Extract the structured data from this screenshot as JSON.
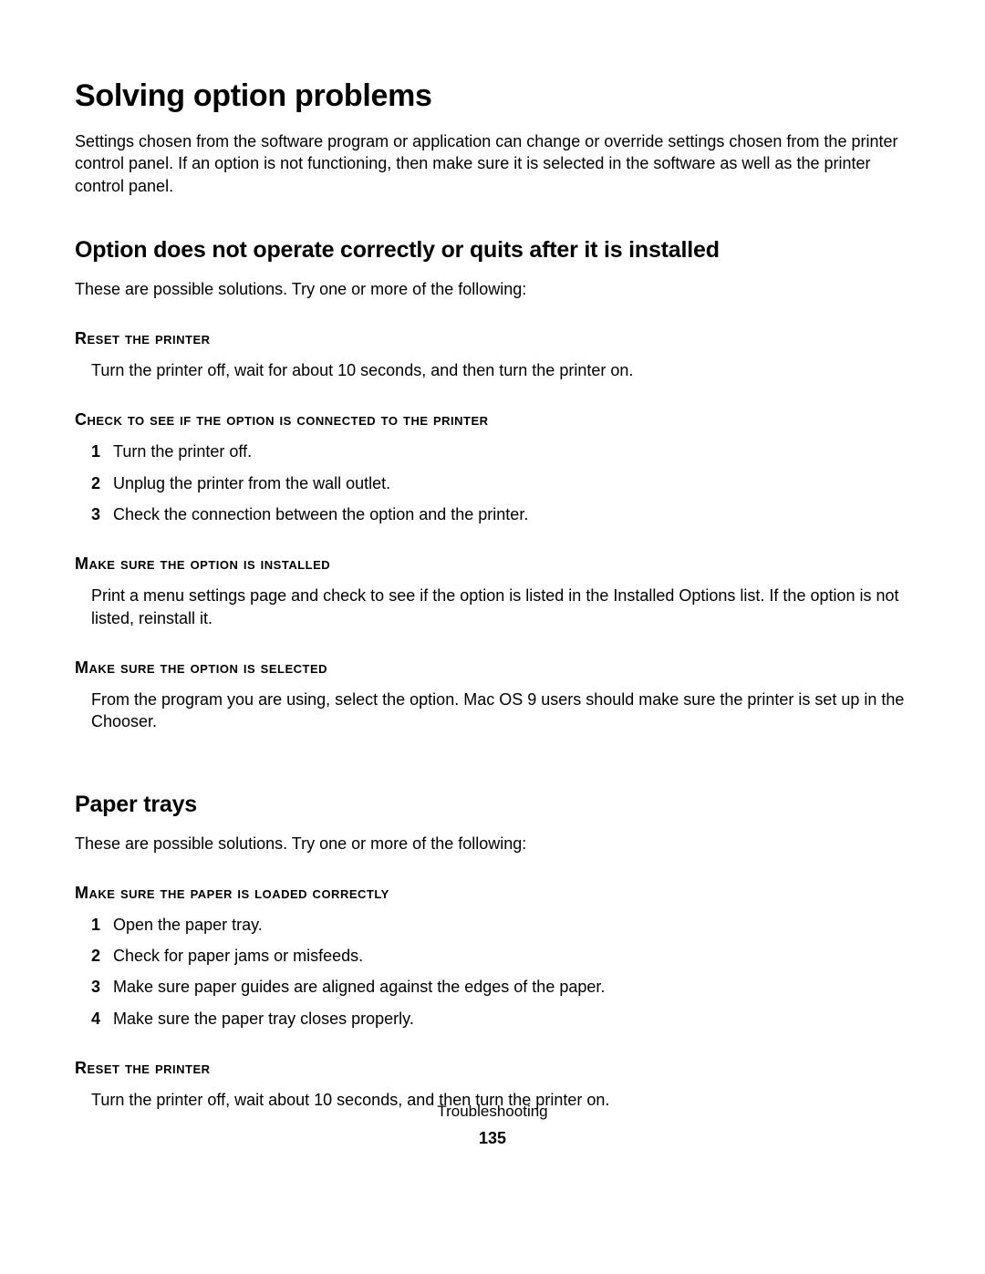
{
  "page": {
    "title": "Solving option problems",
    "intro": "Settings chosen from the software program or application can change or override settings chosen from the printer control panel. If an option is not functioning, then make sure it is selected in the software as well as the printer control panel.",
    "sections": [
      {
        "heading": "Option does not operate correctly or quits after it is installed",
        "lead": "These are possible solutions. Try one or more of the following:",
        "subs": [
          {
            "title": "Reset the printer",
            "body": "Turn the printer off, wait for about 10 seconds, and then turn the printer on."
          },
          {
            "title": "Check to see if the option is connected to the printer",
            "list": [
              "Turn the printer off.",
              "Unplug the printer from the wall outlet.",
              "Check the connection between the option and the printer."
            ]
          },
          {
            "title": "Make sure the option is installed",
            "body": "Print a menu settings page and check to see if the option is listed in the Installed Options list. If the option is not listed, reinstall it."
          },
          {
            "title": "Make sure the option is selected",
            "body": "From the program you are using, select the option. Mac OS 9 users should make sure the printer is set up in the Chooser."
          }
        ]
      },
      {
        "heading": "Paper trays",
        "lead": "These are possible solutions. Try one or more of the following:",
        "subs": [
          {
            "title": "Make sure the paper is loaded correctly",
            "list": [
              "Open the paper tray.",
              "Check for paper jams or misfeeds.",
              "Make sure paper guides are aligned against the edges of the paper.",
              "Make sure the paper tray closes properly."
            ]
          },
          {
            "title": "Reset the printer",
            "body": "Turn the printer off, wait about 10 seconds, and then turn the printer on."
          }
        ]
      }
    ],
    "footer_label": "Troubleshooting",
    "page_number": "135"
  }
}
